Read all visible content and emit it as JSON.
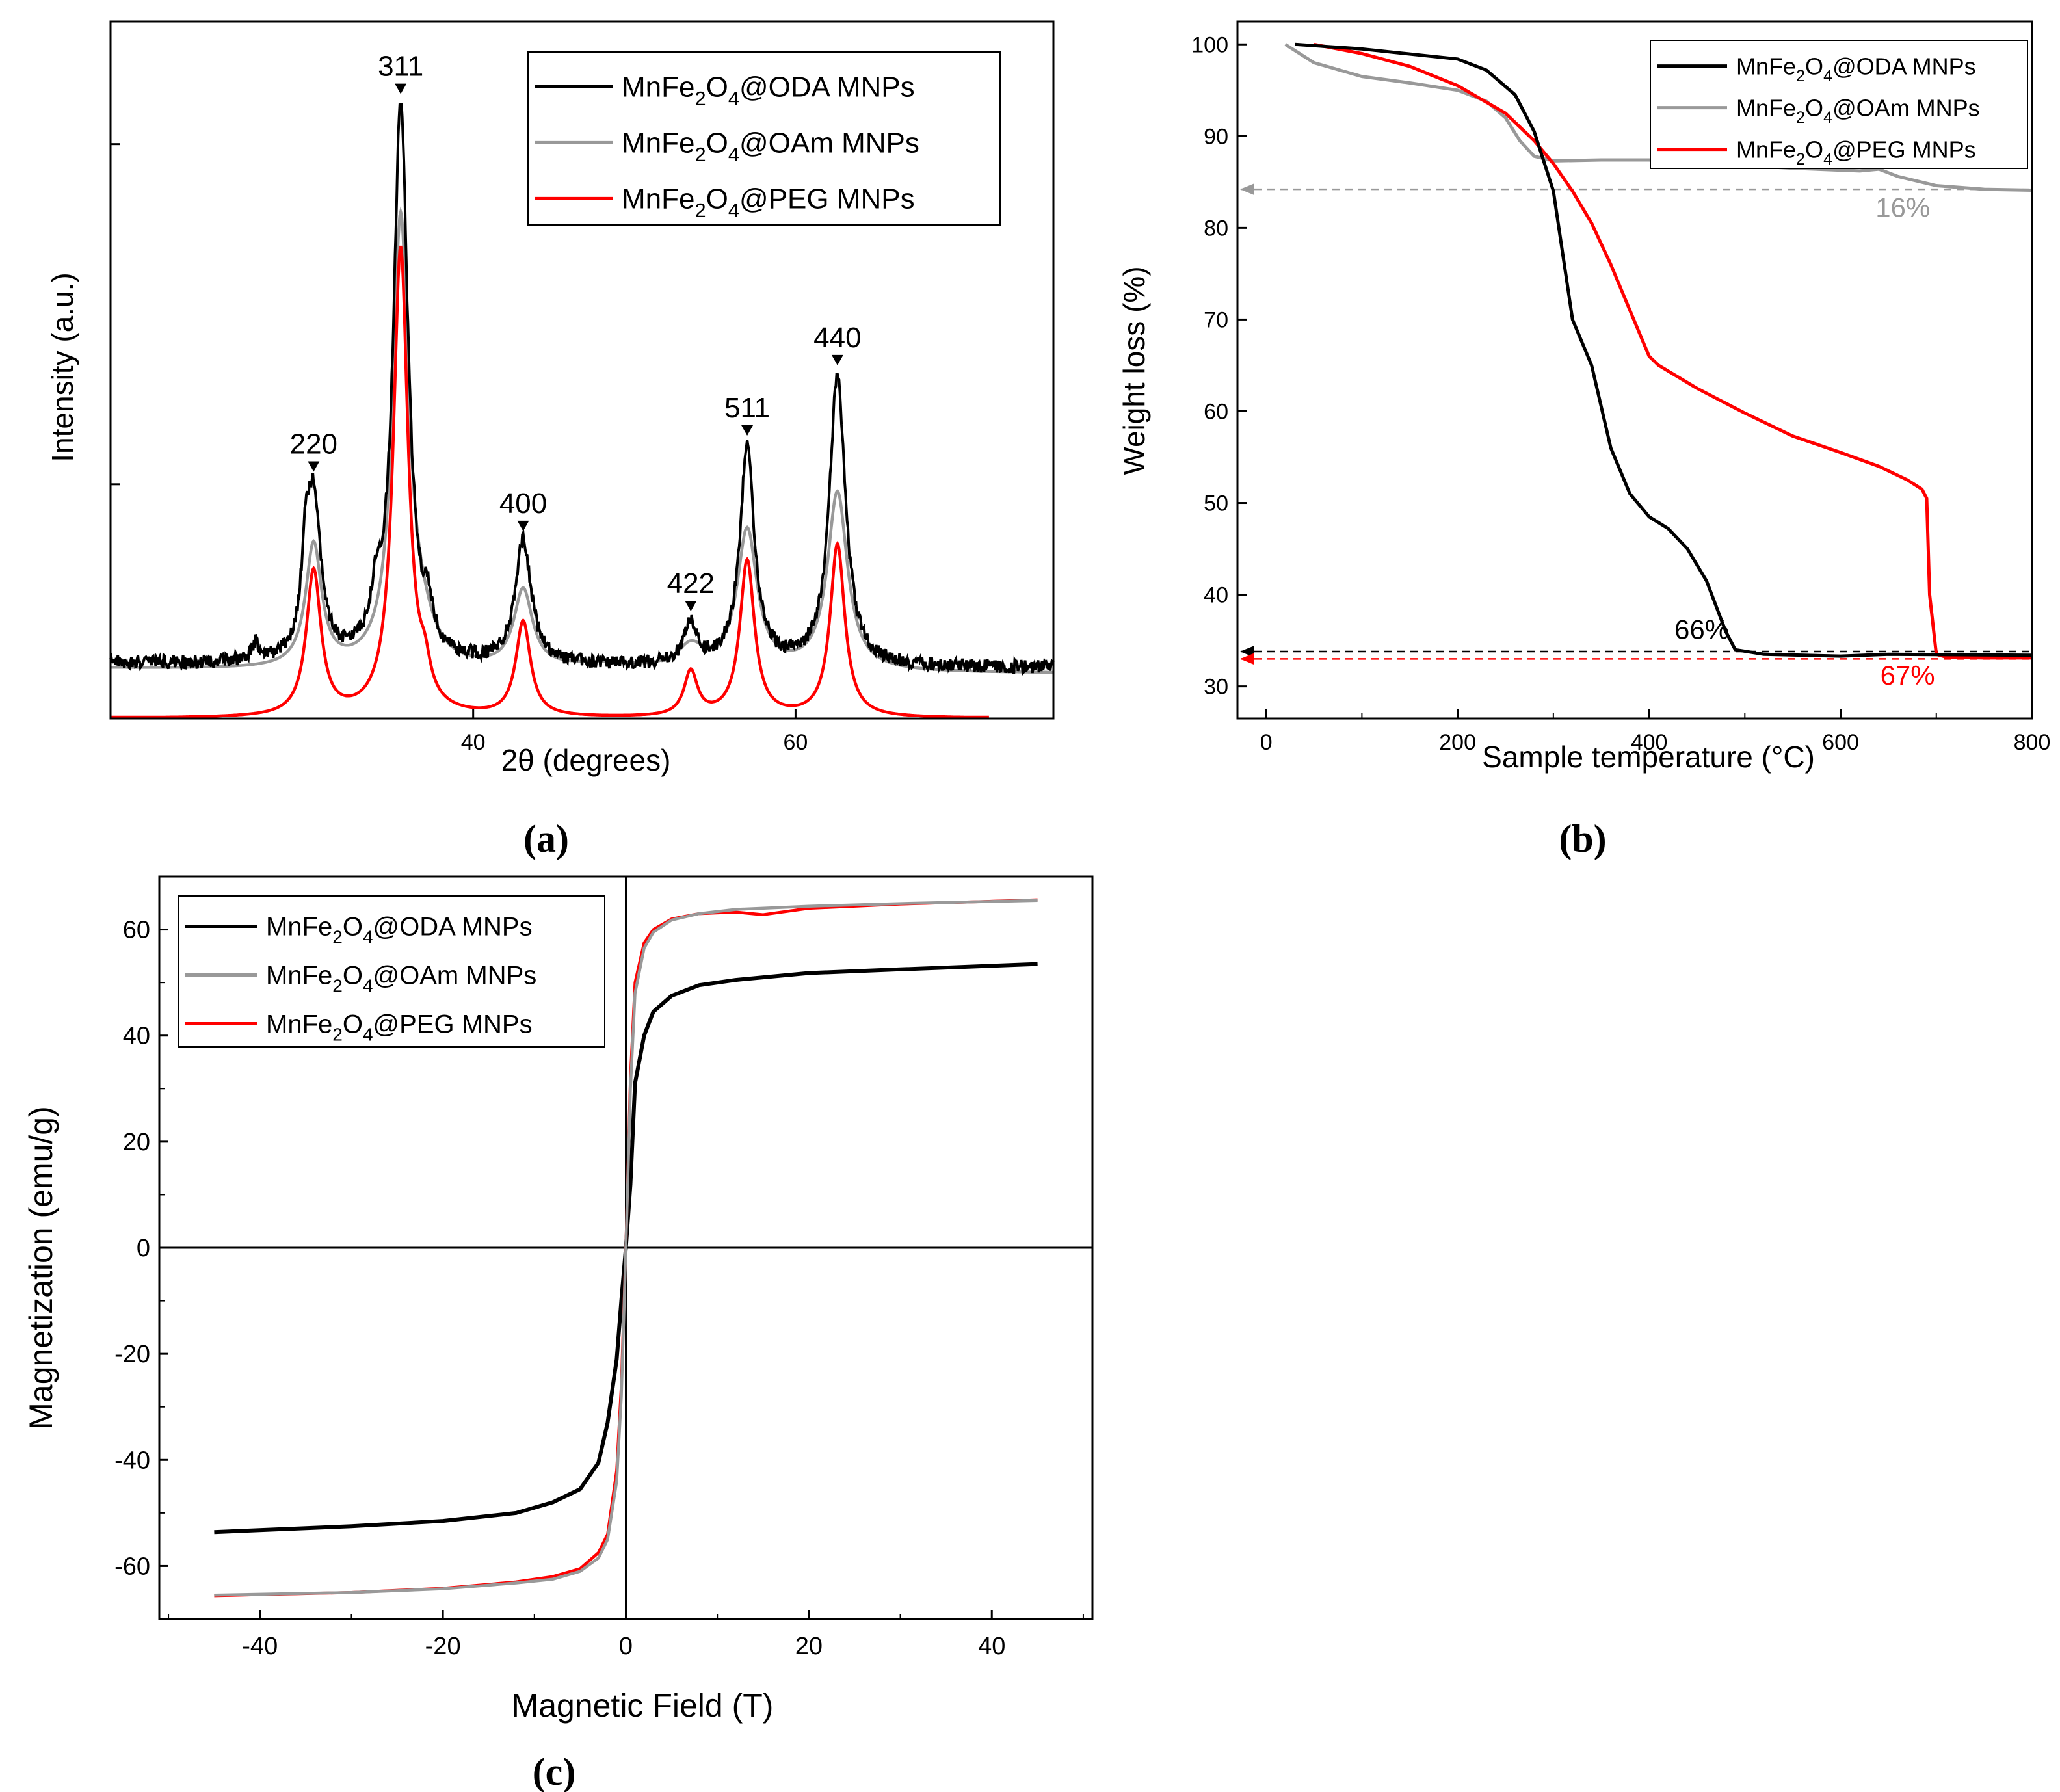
{
  "panel_labels": {
    "a": "(a)",
    "b": "(b)",
    "c": "(c)"
  },
  "colors": {
    "oda": "#000000",
    "oam": "#999999",
    "peg": "#ff0000",
    "axis": "#000000"
  },
  "chart_data": [
    {
      "id": "a",
      "type": "line",
      "title": "",
      "xlabel": "2θ (degrees)",
      "ylabel": "Intensity (a.u.)",
      "xlim": [
        17.5,
        76
      ],
      "ylim": [
        0,
        1.25
      ],
      "xticks": [
        40,
        60
      ],
      "xtick_labels": [
        "40",
        "60"
      ],
      "legend": {
        "position": "top-right",
        "entries": [
          {
            "key": "oda",
            "prefix": "MnFe",
            "sub1": "2",
            "mid": "O",
            "sub2": "4",
            "suffix": "@ODA MNPs"
          },
          {
            "key": "oam",
            "prefix": "MnFe",
            "sub1": "2",
            "mid": "O",
            "sub2": "4",
            "suffix": "@OAm MNPs"
          },
          {
            "key": "peg",
            "prefix": "MnFe",
            "sub1": "2",
            "mid": "O",
            "sub2": "4",
            "suffix": "@PEG MNPs"
          }
        ]
      },
      "peaks": [
        {
          "label": "220",
          "x": 30.1
        },
        {
          "label": "311",
          "x": 35.5
        },
        {
          "label": "400",
          "x": 43.1
        },
        {
          "label": "422",
          "x": 53.5
        },
        {
          "label": "511",
          "x": 57.0
        },
        {
          "label": "440",
          "x": 62.6
        }
      ],
      "series": [
        {
          "key": "oda",
          "baseline": 0.09,
          "noise": 0.012,
          "end_x": 76,
          "peaks": [
            [
              30.1,
              0.29,
              0.55
            ],
            [
              29.6,
              0.12,
              0.3
            ],
            [
              35.5,
              1.0,
              0.55
            ],
            [
              34.0,
              0.08,
              0.35
            ],
            [
              37.2,
              0.06,
              0.3
            ],
            [
              43.1,
              0.22,
              0.6
            ],
            [
              53.5,
              0.07,
              0.5
            ],
            [
              57.0,
              0.39,
              0.55
            ],
            [
              62.6,
              0.52,
              0.6
            ],
            [
              26.5,
              0.03,
              0.3
            ]
          ]
        },
        {
          "key": "oam",
          "baseline": 0.08,
          "noise": 0.0,
          "end_x": 76,
          "peaks": [
            [
              30.1,
              0.22,
              0.6
            ],
            [
              35.5,
              0.8,
              0.6
            ],
            [
              36.8,
              0.05,
              1.0
            ],
            [
              43.1,
              0.14,
              0.7
            ],
            [
              53.5,
              0.04,
              1.0
            ],
            [
              57.0,
              0.25,
              0.75
            ],
            [
              62.6,
              0.32,
              0.75
            ],
            [
              48.0,
              0.01,
              3.0
            ]
          ]
        },
        {
          "key": "peg",
          "baseline": 0.0,
          "noise": 0.0,
          "end_x": 72,
          "peaks": [
            [
              30.1,
              0.26,
              0.55
            ],
            [
              35.5,
              0.84,
              0.55
            ],
            [
              37.0,
              0.05,
              0.4
            ],
            [
              43.1,
              0.17,
              0.55
            ],
            [
              53.5,
              0.08,
              0.5
            ],
            [
              57.0,
              0.28,
              0.55
            ],
            [
              62.6,
              0.31,
              0.55
            ]
          ]
        }
      ]
    },
    {
      "id": "b",
      "type": "line",
      "title": "",
      "xlabel": "Sample temperature (°C)",
      "ylabel": "Weight loss (%)",
      "xlim": [
        -30,
        800
      ],
      "ylim": [
        26.5,
        102.5
      ],
      "xticks": [
        0,
        200,
        400,
        600,
        800
      ],
      "xtick_labels": [
        "0",
        "200",
        "400",
        "600",
        "800"
      ],
      "yticks": [
        30,
        40,
        50,
        60,
        70,
        80,
        90,
        100
      ],
      "ytick_labels": [
        "30",
        "40",
        "50",
        "60",
        "70",
        "80",
        "90",
        "100"
      ],
      "legend": {
        "position": "top-right",
        "entries": [
          {
            "key": "oda",
            "prefix": "MnFe",
            "sub1": "2",
            "mid": "O",
            "sub2": "4",
            "suffix": "@ODA MNPs"
          },
          {
            "key": "oam",
            "prefix": "MnFe",
            "sub1": "2",
            "mid": "O",
            "sub2": "4",
            "suffix": "@OAm MNPs"
          },
          {
            "key": "peg",
            "prefix": "MnFe",
            "sub1": "2",
            "mid": "O",
            "sub2": "4",
            "suffix": "@PEG MNPs"
          }
        ]
      },
      "series": [
        {
          "key": "oda",
          "x": [
            30,
            100,
            200,
            230,
            260,
            280,
            300,
            310,
            320,
            340,
            360,
            380,
            400,
            420,
            440,
            460,
            480,
            490,
            520,
            600,
            650,
            800
          ],
          "y": [
            100,
            99.5,
            98.4,
            97.2,
            94.5,
            90.5,
            84,
            77,
            70,
            65,
            56,
            51,
            48.5,
            47.2,
            45,
            41.5,
            36,
            34,
            33.5,
            33.3,
            33.5,
            33.4
          ]
        },
        {
          "key": "oam",
          "x": [
            20,
            50,
            100,
            150,
            200,
            230,
            250,
            265,
            280,
            300,
            350,
            400,
            450,
            500,
            550,
            620,
            640,
            660,
            700,
            750,
            800
          ],
          "y": [
            100,
            98,
            96.5,
            95.8,
            95,
            93.8,
            92,
            89.5,
            87.8,
            87.3,
            87.4,
            87.4,
            87,
            86.8,
            86.5,
            86.2,
            86.4,
            85.6,
            84.6,
            84.2,
            84.1
          ]
        },
        {
          "key": "peg",
          "x": [
            50,
            100,
            150,
            200,
            250,
            280,
            300,
            320,
            340,
            360,
            380,
            400,
            410,
            450,
            500,
            550,
            600,
            640,
            670,
            685,
            690,
            693,
            700,
            710,
            750,
            800
          ],
          "y": [
            100,
            99,
            97.6,
            95.5,
            92.5,
            89.5,
            87,
            84,
            80.5,
            76,
            71,
            66,
            65,
            62.5,
            59.8,
            57.3,
            55.5,
            54,
            52.5,
            51.5,
            50.5,
            40,
            33.5,
            33.2,
            33.1,
            33.1
          ]
        }
      ],
      "reference_lines": [
        {
          "key": "oam",
          "y": 84.2,
          "label": "16%",
          "label_x": 665,
          "label_y": 81.2
        },
        {
          "key": "oda",
          "y": 33.8,
          "label": "66%",
          "label_x": 455,
          "label_y": 35.2
        },
        {
          "key": "peg",
          "y": 33.0,
          "label": "67%",
          "label_x": 670,
          "label_y": 30.2
        }
      ]
    },
    {
      "id": "c",
      "type": "line",
      "title": "",
      "xlabel": "Magnetic Field (T)",
      "ylabel": "Magnetization (emu/g)",
      "xlim": [
        -51,
        51
      ],
      "ylim": [
        -70,
        70
      ],
      "xticks": [
        -40,
        -20,
        0,
        20,
        40
      ],
      "xtick_labels": [
        "-40",
        "-20",
        "0",
        "20",
        "40"
      ],
      "yticks": [
        -60,
        -40,
        -20,
        0,
        20,
        40,
        60
      ],
      "ytick_labels": [
        "-60",
        "-40",
        "-20",
        "0",
        "20",
        "40",
        "60"
      ],
      "legend": {
        "position": "top-left",
        "entries": [
          {
            "key": "oda",
            "prefix": "MnFe",
            "sub1": "2",
            "mid": "O",
            "sub2": "4",
            "suffix": "@ODA MNPs"
          },
          {
            "key": "oam",
            "prefix": "MnFe",
            "sub1": "2",
            "mid": "O",
            "sub2": "4",
            "suffix": "@OAm MNPs"
          },
          {
            "key": "peg",
            "prefix": "MnFe",
            "sub1": "2",
            "mid": "O",
            "sub2": "4",
            "suffix": "@PEG MNPs"
          }
        ]
      },
      "series": [
        {
          "key": "oda",
          "x": [
            -45,
            -30,
            -20,
            -12,
            -8,
            -5,
            -3,
            -2,
            -1,
            -0.5,
            0,
            0.5,
            1,
            2,
            3,
            5,
            8,
            12,
            20,
            30,
            45
          ],
          "y": [
            -53.6,
            -52.5,
            -51.5,
            -50,
            -48,
            -45.5,
            -40.5,
            -33,
            -21,
            -10,
            0,
            12,
            31,
            40,
            44.5,
            47.5,
            49.5,
            50.5,
            51.8,
            52.5,
            53.5
          ]
        },
        {
          "key": "oam",
          "x": [
            -45,
            -30,
            -20,
            -12,
            -8,
            -5,
            -3,
            -2,
            -1,
            -0.5,
            0,
            0.5,
            1,
            2,
            3,
            5,
            8,
            12,
            20,
            30,
            45
          ],
          "y": [
            -65.5,
            -65,
            -64.3,
            -63.2,
            -62.5,
            -61,
            -58.5,
            -55,
            -44,
            -28,
            0,
            30,
            48,
            56.5,
            59.5,
            61.8,
            63,
            63.8,
            64.4,
            64.9,
            65.5
          ]
        },
        {
          "key": "peg",
          "x": [
            -45,
            -30,
            -20,
            -12,
            -8,
            -5,
            -3,
            -2,
            -1,
            -0.5,
            0,
            0.5,
            1,
            2,
            3,
            5,
            8,
            12,
            15,
            20,
            30,
            45
          ],
          "y": [
            -65.6,
            -65,
            -64.2,
            -63,
            -62,
            -60.5,
            -57.5,
            -54,
            -42,
            -26,
            0,
            32,
            50,
            57.5,
            60,
            62,
            63,
            63.3,
            62.8,
            64,
            64.8,
            65.6
          ]
        }
      ]
    }
  ]
}
